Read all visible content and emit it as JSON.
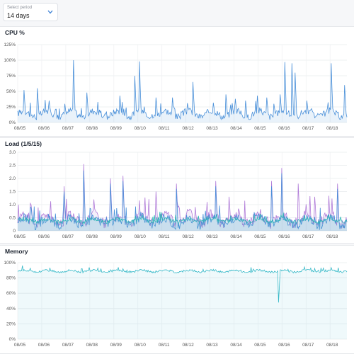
{
  "period": {
    "label": "Select period",
    "value": "14 days"
  },
  "charts": [
    {
      "title": "CPU %",
      "chart_data": {
        "type": "area",
        "title": "CPU %",
        "x": [
          "08/05",
          "08/06",
          "08/07",
          "08/08",
          "08/09",
          "08/10",
          "08/11",
          "08/12",
          "08/13",
          "08/14",
          "08/15",
          "08/16",
          "08/17",
          "08/18"
        ],
        "ylim": [
          0,
          125
        ],
        "yticks": [
          "0%",
          "25%",
          "50%",
          "75%",
          "100%",
          "125%"
        ],
        "grid": true,
        "series": [
          {
            "color": "#4a90d9",
            "baseline": 14,
            "noise": 8,
            "spikes": [
              [
                0.02,
                52
              ],
              [
                0.06,
                55
              ],
              [
                0.095,
                35
              ],
              [
                0.17,
                100
              ],
              [
                0.21,
                48
              ],
              [
                0.31,
                43
              ],
              [
                0.355,
                75
              ],
              [
                0.37,
                98
              ],
              [
                0.42,
                40
              ],
              [
                0.47,
                40
              ],
              [
                0.53,
                65
              ],
              [
                0.63,
                45
              ],
              [
                0.66,
                38
              ],
              [
                0.69,
                35
              ],
              [
                0.725,
                43
              ],
              [
                0.755,
                40
              ],
              [
                0.775,
                30
              ],
              [
                0.795,
                45
              ],
              [
                0.81,
                97
              ],
              [
                0.83,
                95
              ],
              [
                0.84,
                80
              ],
              [
                0.875,
                35
              ],
              [
                0.95,
                95
              ],
              [
                0.99,
                60
              ]
            ]
          }
        ]
      }
    },
    {
      "title": "Load (1/5/15)",
      "chart_data": {
        "type": "area",
        "title": "Load (1/5/15)",
        "x": [
          "08/05",
          "08/06",
          "08/07",
          "08/08",
          "08/09",
          "08/10",
          "08/11",
          "08/12",
          "08/13",
          "08/14",
          "08/15",
          "08/16",
          "08/17",
          "08/18"
        ],
        "ylim": [
          0,
          3.0
        ],
        "yticks": [
          "0",
          "0.5",
          "1.0",
          "1.5",
          "2.0",
          "2.5",
          "3.0"
        ],
        "grid": true,
        "series": [
          {
            "color": "#b07bd8",
            "baseline": 0.45,
            "noise": 0.3,
            "spikes": [
              [
                0.04,
                1.0
              ],
              [
                0.14,
                1.7
              ],
              [
                0.2,
                2.55
              ],
              [
                0.23,
                1.2
              ],
              [
                0.28,
                2.0
              ],
              [
                0.32,
                2.1
              ],
              [
                0.42,
                1.5
              ],
              [
                0.48,
                1.8
              ],
              [
                0.6,
                1.9
              ],
              [
                0.64,
                1.3
              ],
              [
                0.77,
                1.9
              ],
              [
                0.8,
                2.4
              ],
              [
                0.85,
                1.8
              ],
              [
                0.9,
                1.3
              ],
              [
                0.97,
                1.8
              ]
            ]
          },
          {
            "color": "#4a90d9",
            "baseline": 0.35,
            "noise": 0.25,
            "spikes": [
              [
                0.04,
                0.9
              ],
              [
                0.14,
                1.5
              ],
              [
                0.2,
                2.3
              ],
              [
                0.28,
                1.8
              ],
              [
                0.32,
                1.9
              ],
              [
                0.48,
                1.6
              ],
              [
                0.6,
                1.7
              ],
              [
                0.77,
                1.7
              ],
              [
                0.8,
                2.2
              ],
              [
                0.97,
                1.6
              ]
            ]
          },
          {
            "color": "#2bb5b5",
            "baseline": 0.4,
            "noise": 0.1,
            "spikes": []
          }
        ]
      }
    },
    {
      "title": "Memory",
      "chart_data": {
        "type": "area",
        "title": "Memory",
        "x": [
          "08/05",
          "08/06",
          "08/07",
          "08/08",
          "08/09",
          "08/10",
          "08/11",
          "08/12",
          "08/13",
          "08/14",
          "08/15",
          "08/16",
          "08/17",
          "08/18"
        ],
        "ylim": [
          0,
          100
        ],
        "yticks": [
          "0%",
          "20%",
          "40%",
          "60%",
          "80%",
          "100%"
        ],
        "grid": true,
        "series": [
          {
            "color": "#34b8c7",
            "baseline": 89,
            "noise": 2,
            "spikes": [
              [
                0.79,
                48
              ]
            ],
            "dip": true
          }
        ]
      }
    }
  ]
}
